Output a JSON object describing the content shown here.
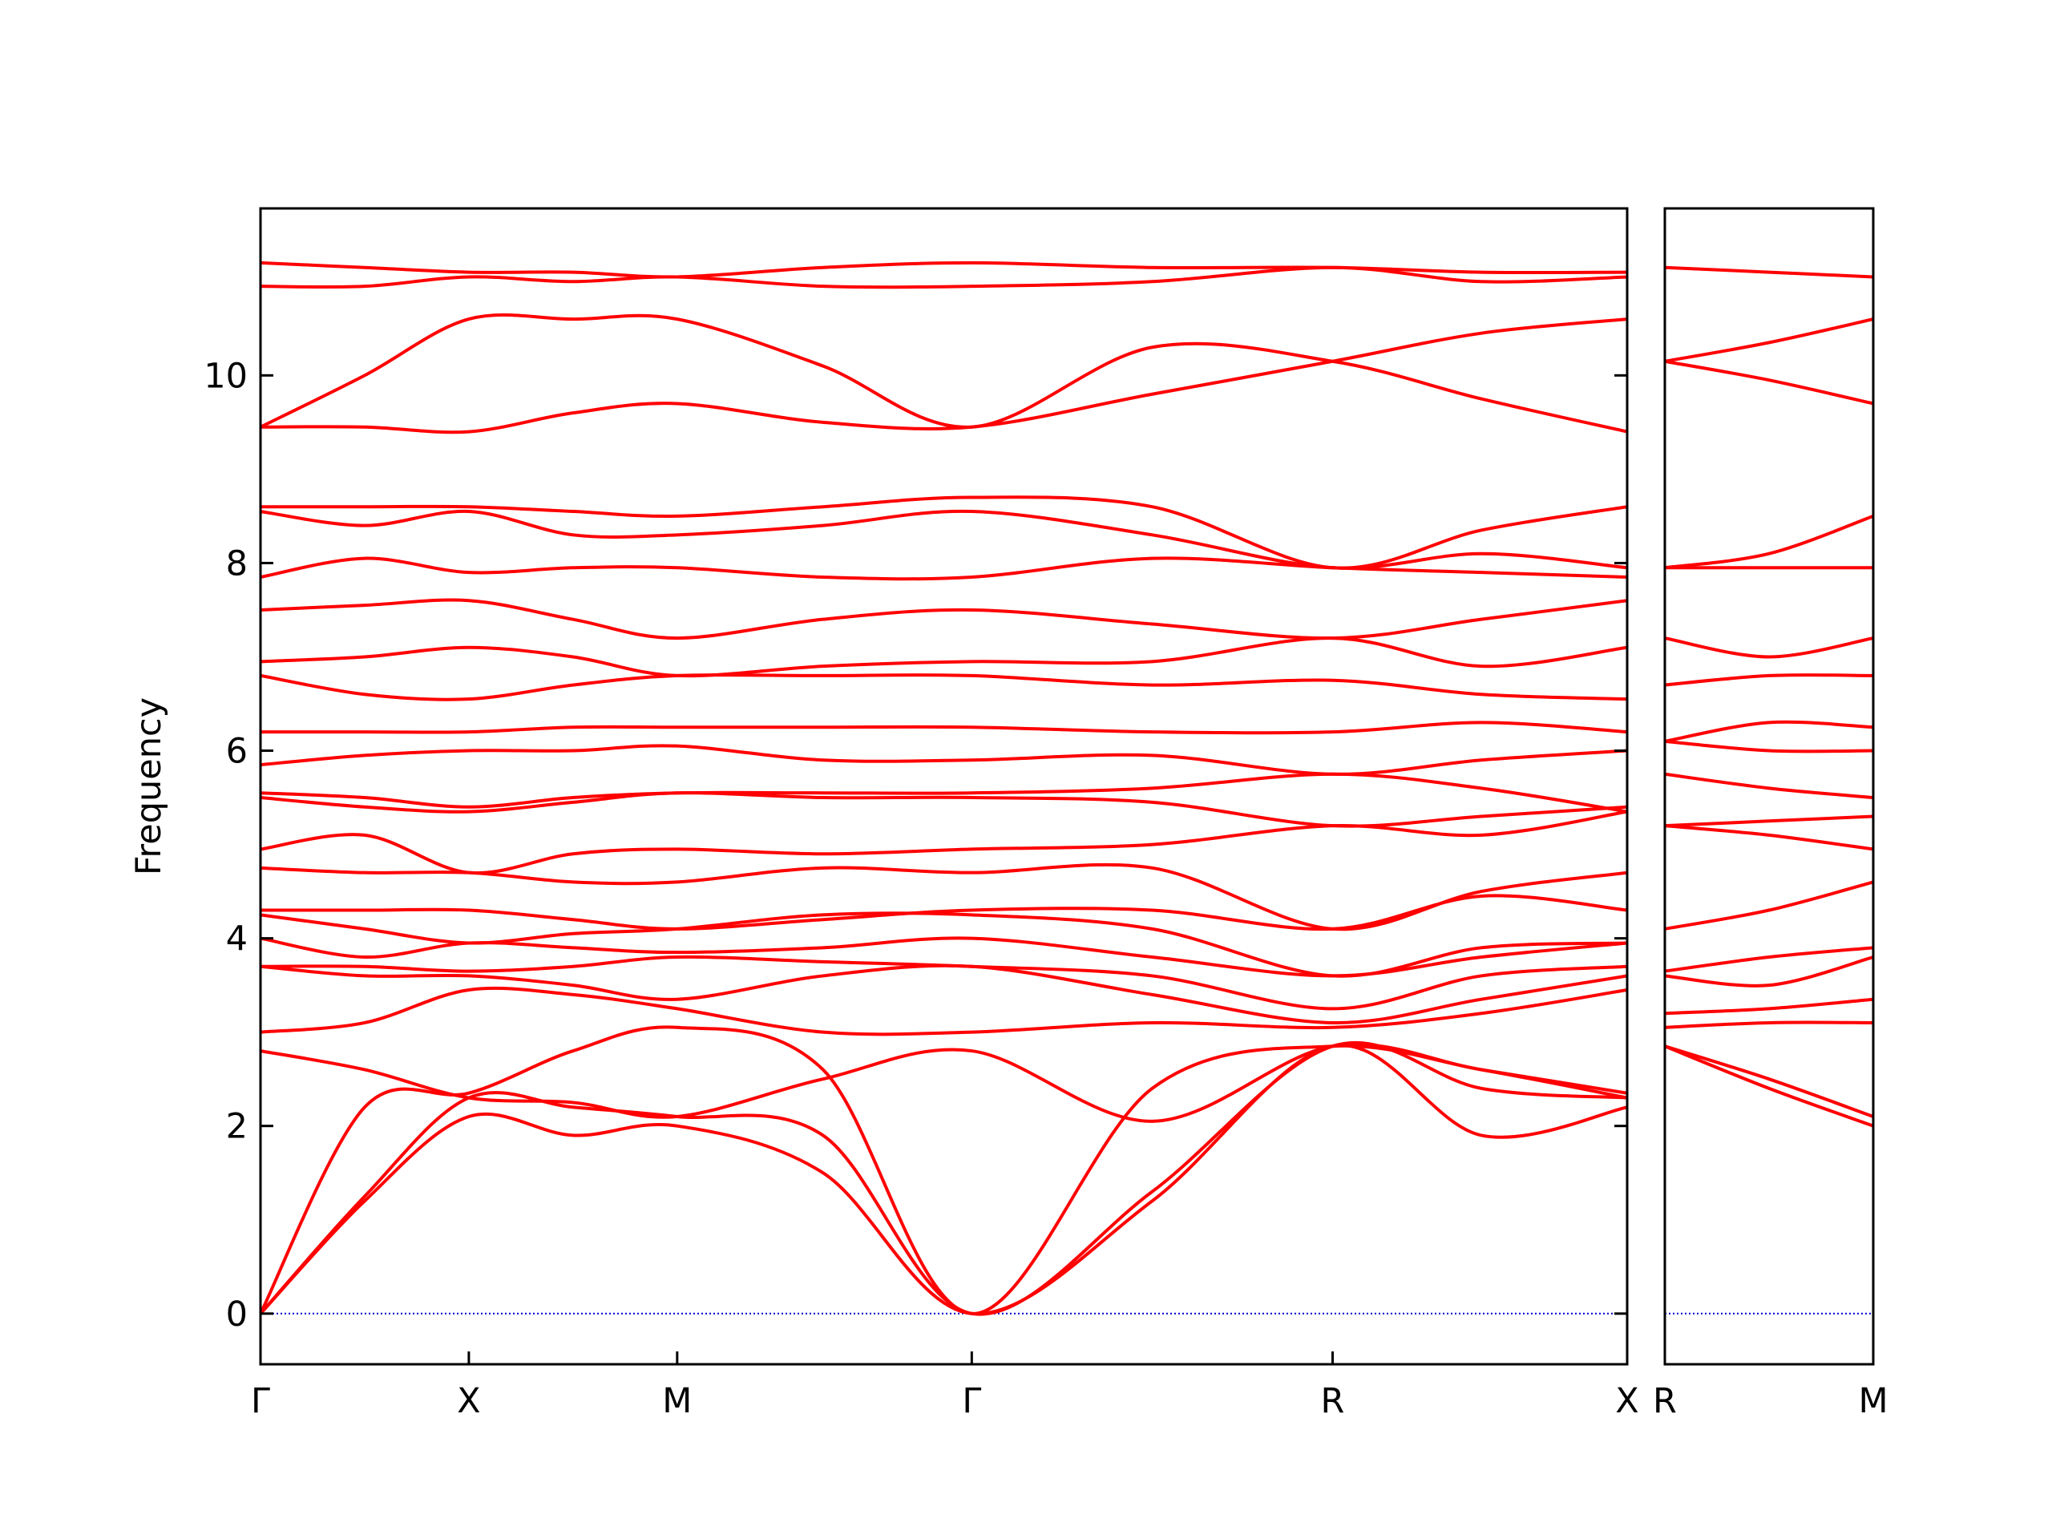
{
  "chart_data": [
    {
      "type": "line",
      "y_label": "Frequency",
      "color": "#ff0000",
      "xlim": [
        0,
        3.28
      ],
      "ylim": [
        -0.54,
        11.78
      ],
      "xticks": [
        {
          "value": 0,
          "label": "Γ"
        },
        {
          "value": 0.5,
          "label": "X"
        },
        {
          "value": 1.0,
          "label": "M"
        },
        {
          "value": 1.707,
          "label": "Γ"
        },
        {
          "value": 2.573,
          "label": "R"
        },
        {
          "value": 3.28,
          "label": "X"
        }
      ],
      "yticks": [
        0,
        2,
        4,
        6,
        8,
        10
      ],
      "zero_line": {
        "value": 0,
        "color": "#0000cc"
      },
      "x": [
        0,
        0.25,
        0.5,
        0.75,
        1.0,
        1.35,
        1.707,
        2.14,
        2.573,
        2.93,
        3.28
      ],
      "series": [
        {
          "values": [
            0,
            1.2,
            2.1,
            1.9,
            2.0,
            1.5,
            0,
            1.2,
            2.85,
            1.9,
            2.2
          ]
        },
        {
          "values": [
            0,
            1.25,
            2.3,
            2.2,
            2.1,
            1.9,
            0,
            1.3,
            2.85,
            2.4,
            2.3
          ]
        },
        {
          "values": [
            0,
            2.2,
            2.35,
            2.8,
            3.05,
            2.6,
            0,
            2.4,
            2.85,
            2.6,
            2.3
          ]
        },
        {
          "values": [
            2.8,
            2.6,
            2.3,
            2.25,
            2.1,
            2.5,
            2.8,
            2.05,
            2.85,
            2.6,
            2.35
          ]
        },
        {
          "values": [
            3.0,
            3.1,
            3.45,
            3.4,
            3.25,
            3.0,
            3.0,
            3.1,
            3.05,
            3.2,
            3.45
          ]
        },
        {
          "values": [
            3.7,
            3.6,
            3.6,
            3.5,
            3.35,
            3.6,
            3.7,
            3.4,
            3.1,
            3.35,
            3.6
          ]
        },
        {
          "values": [
            3.7,
            3.7,
            3.65,
            3.7,
            3.8,
            3.75,
            3.7,
            3.6,
            3.25,
            3.6,
            3.7
          ]
        },
        {
          "values": [
            4.0,
            3.8,
            3.95,
            3.9,
            3.85,
            3.9,
            4.0,
            3.8,
            3.6,
            3.8,
            3.95
          ]
        },
        {
          "values": [
            4.25,
            4.1,
            3.95,
            4.05,
            4.1,
            4.25,
            4.25,
            4.1,
            3.6,
            3.9,
            3.95
          ]
        },
        {
          "values": [
            4.3,
            4.3,
            4.3,
            4.2,
            4.1,
            4.2,
            4.3,
            4.3,
            4.1,
            4.45,
            4.3
          ]
        },
        {
          "values": [
            4.75,
            4.7,
            4.7,
            4.6,
            4.6,
            4.75,
            4.7,
            4.75,
            4.1,
            4.5,
            4.7
          ]
        },
        {
          "values": [
            4.95,
            5.1,
            4.7,
            4.9,
            4.95,
            4.9,
            4.95,
            5.0,
            5.2,
            5.1,
            5.35
          ]
        },
        {
          "values": [
            5.5,
            5.4,
            5.35,
            5.45,
            5.55,
            5.5,
            5.5,
            5.45,
            5.2,
            5.3,
            5.4
          ]
        },
        {
          "values": [
            5.55,
            5.5,
            5.4,
            5.5,
            5.55,
            5.55,
            5.55,
            5.6,
            5.75,
            5.6,
            5.35
          ]
        },
        {
          "values": [
            5.85,
            5.95,
            6.0,
            6.0,
            6.05,
            5.9,
            5.9,
            5.95,
            5.75,
            5.9,
            6.0
          ]
        },
        {
          "values": [
            6.2,
            6.2,
            6.2,
            6.25,
            6.25,
            6.25,
            6.25,
            6.2,
            6.2,
            6.3,
            6.2
          ]
        },
        {
          "values": [
            6.8,
            6.6,
            6.55,
            6.7,
            6.8,
            6.8,
            6.8,
            6.7,
            6.75,
            6.6,
            6.55
          ]
        },
        {
          "values": [
            6.95,
            7.0,
            7.1,
            7.0,
            6.8,
            6.9,
            6.95,
            6.95,
            7.2,
            6.9,
            7.1
          ]
        },
        {
          "values": [
            7.5,
            7.55,
            7.6,
            7.4,
            7.2,
            7.4,
            7.5,
            7.35,
            7.2,
            7.4,
            7.6
          ]
        },
        {
          "values": [
            7.85,
            8.05,
            7.9,
            7.95,
            7.95,
            7.85,
            7.85,
            8.05,
            7.95,
            7.9,
            7.85
          ]
        },
        {
          "values": [
            8.55,
            8.4,
            8.55,
            8.3,
            8.3,
            8.4,
            8.55,
            8.3,
            7.95,
            8.1,
            7.95
          ]
        },
        {
          "values": [
            8.6,
            8.6,
            8.6,
            8.55,
            8.5,
            8.6,
            8.7,
            8.6,
            7.95,
            8.35,
            8.6
          ]
        },
        {
          "values": [
            9.45,
            9.45,
            9.4,
            9.6,
            9.7,
            9.5,
            9.45,
            9.8,
            10.15,
            10.45,
            10.6
          ]
        },
        {
          "values": [
            9.45,
            10.0,
            10.6,
            10.6,
            10.6,
            10.1,
            9.45,
            10.3,
            10.15,
            9.75,
            9.4
          ]
        },
        {
          "values": [
            10.95,
            10.95,
            11.05,
            11.0,
            11.05,
            10.95,
            10.95,
            11.0,
            11.15,
            11.0,
            11.05
          ]
        },
        {
          "values": [
            11.2,
            11.15,
            11.1,
            11.1,
            11.05,
            11.15,
            11.2,
            11.15,
            11.15,
            11.1,
            11.1
          ]
        }
      ]
    },
    {
      "type": "line",
      "color": "#ff0000",
      "xlim": [
        0,
        0.5
      ],
      "ylim": [
        -0.54,
        11.78
      ],
      "xticks": [
        {
          "value": 0,
          "label": "R"
        },
        {
          "value": 0.5,
          "label": "M"
        }
      ],
      "zero_line": {
        "value": 0,
        "color": "#0000cc"
      },
      "x": [
        0,
        0.25,
        0.5
      ],
      "series": [
        {
          "values": [
            2.85,
            2.4,
            2.0
          ]
        },
        {
          "values": [
            2.85,
            2.5,
            2.1
          ]
        },
        {
          "values": [
            3.05,
            3.1,
            3.1
          ]
        },
        {
          "values": [
            3.2,
            3.25,
            3.35
          ]
        },
        {
          "values": [
            3.6,
            3.5,
            3.8
          ]
        },
        {
          "values": [
            3.65,
            3.8,
            3.9
          ]
        },
        {
          "values": [
            4.1,
            4.3,
            4.6
          ]
        },
        {
          "values": [
            5.2,
            5.1,
            4.95
          ]
        },
        {
          "values": [
            5.2,
            5.25,
            5.3
          ]
        },
        {
          "values": [
            5.75,
            5.6,
            5.5
          ]
        },
        {
          "values": [
            6.1,
            6.3,
            6.25
          ]
        },
        {
          "values": [
            6.1,
            6.0,
            6.0
          ]
        },
        {
          "values": [
            6.7,
            6.8,
            6.8
          ]
        },
        {
          "values": [
            7.2,
            7.0,
            7.2
          ]
        },
        {
          "values": [
            7.95,
            8.1,
            8.5
          ]
        },
        {
          "values": [
            7.95,
            7.95,
            7.95
          ]
        },
        {
          "values": [
            10.15,
            10.35,
            10.6
          ]
        },
        {
          "values": [
            10.15,
            9.95,
            9.7
          ]
        },
        {
          "values": [
            11.15,
            11.1,
            11.05
          ]
        }
      ]
    }
  ]
}
